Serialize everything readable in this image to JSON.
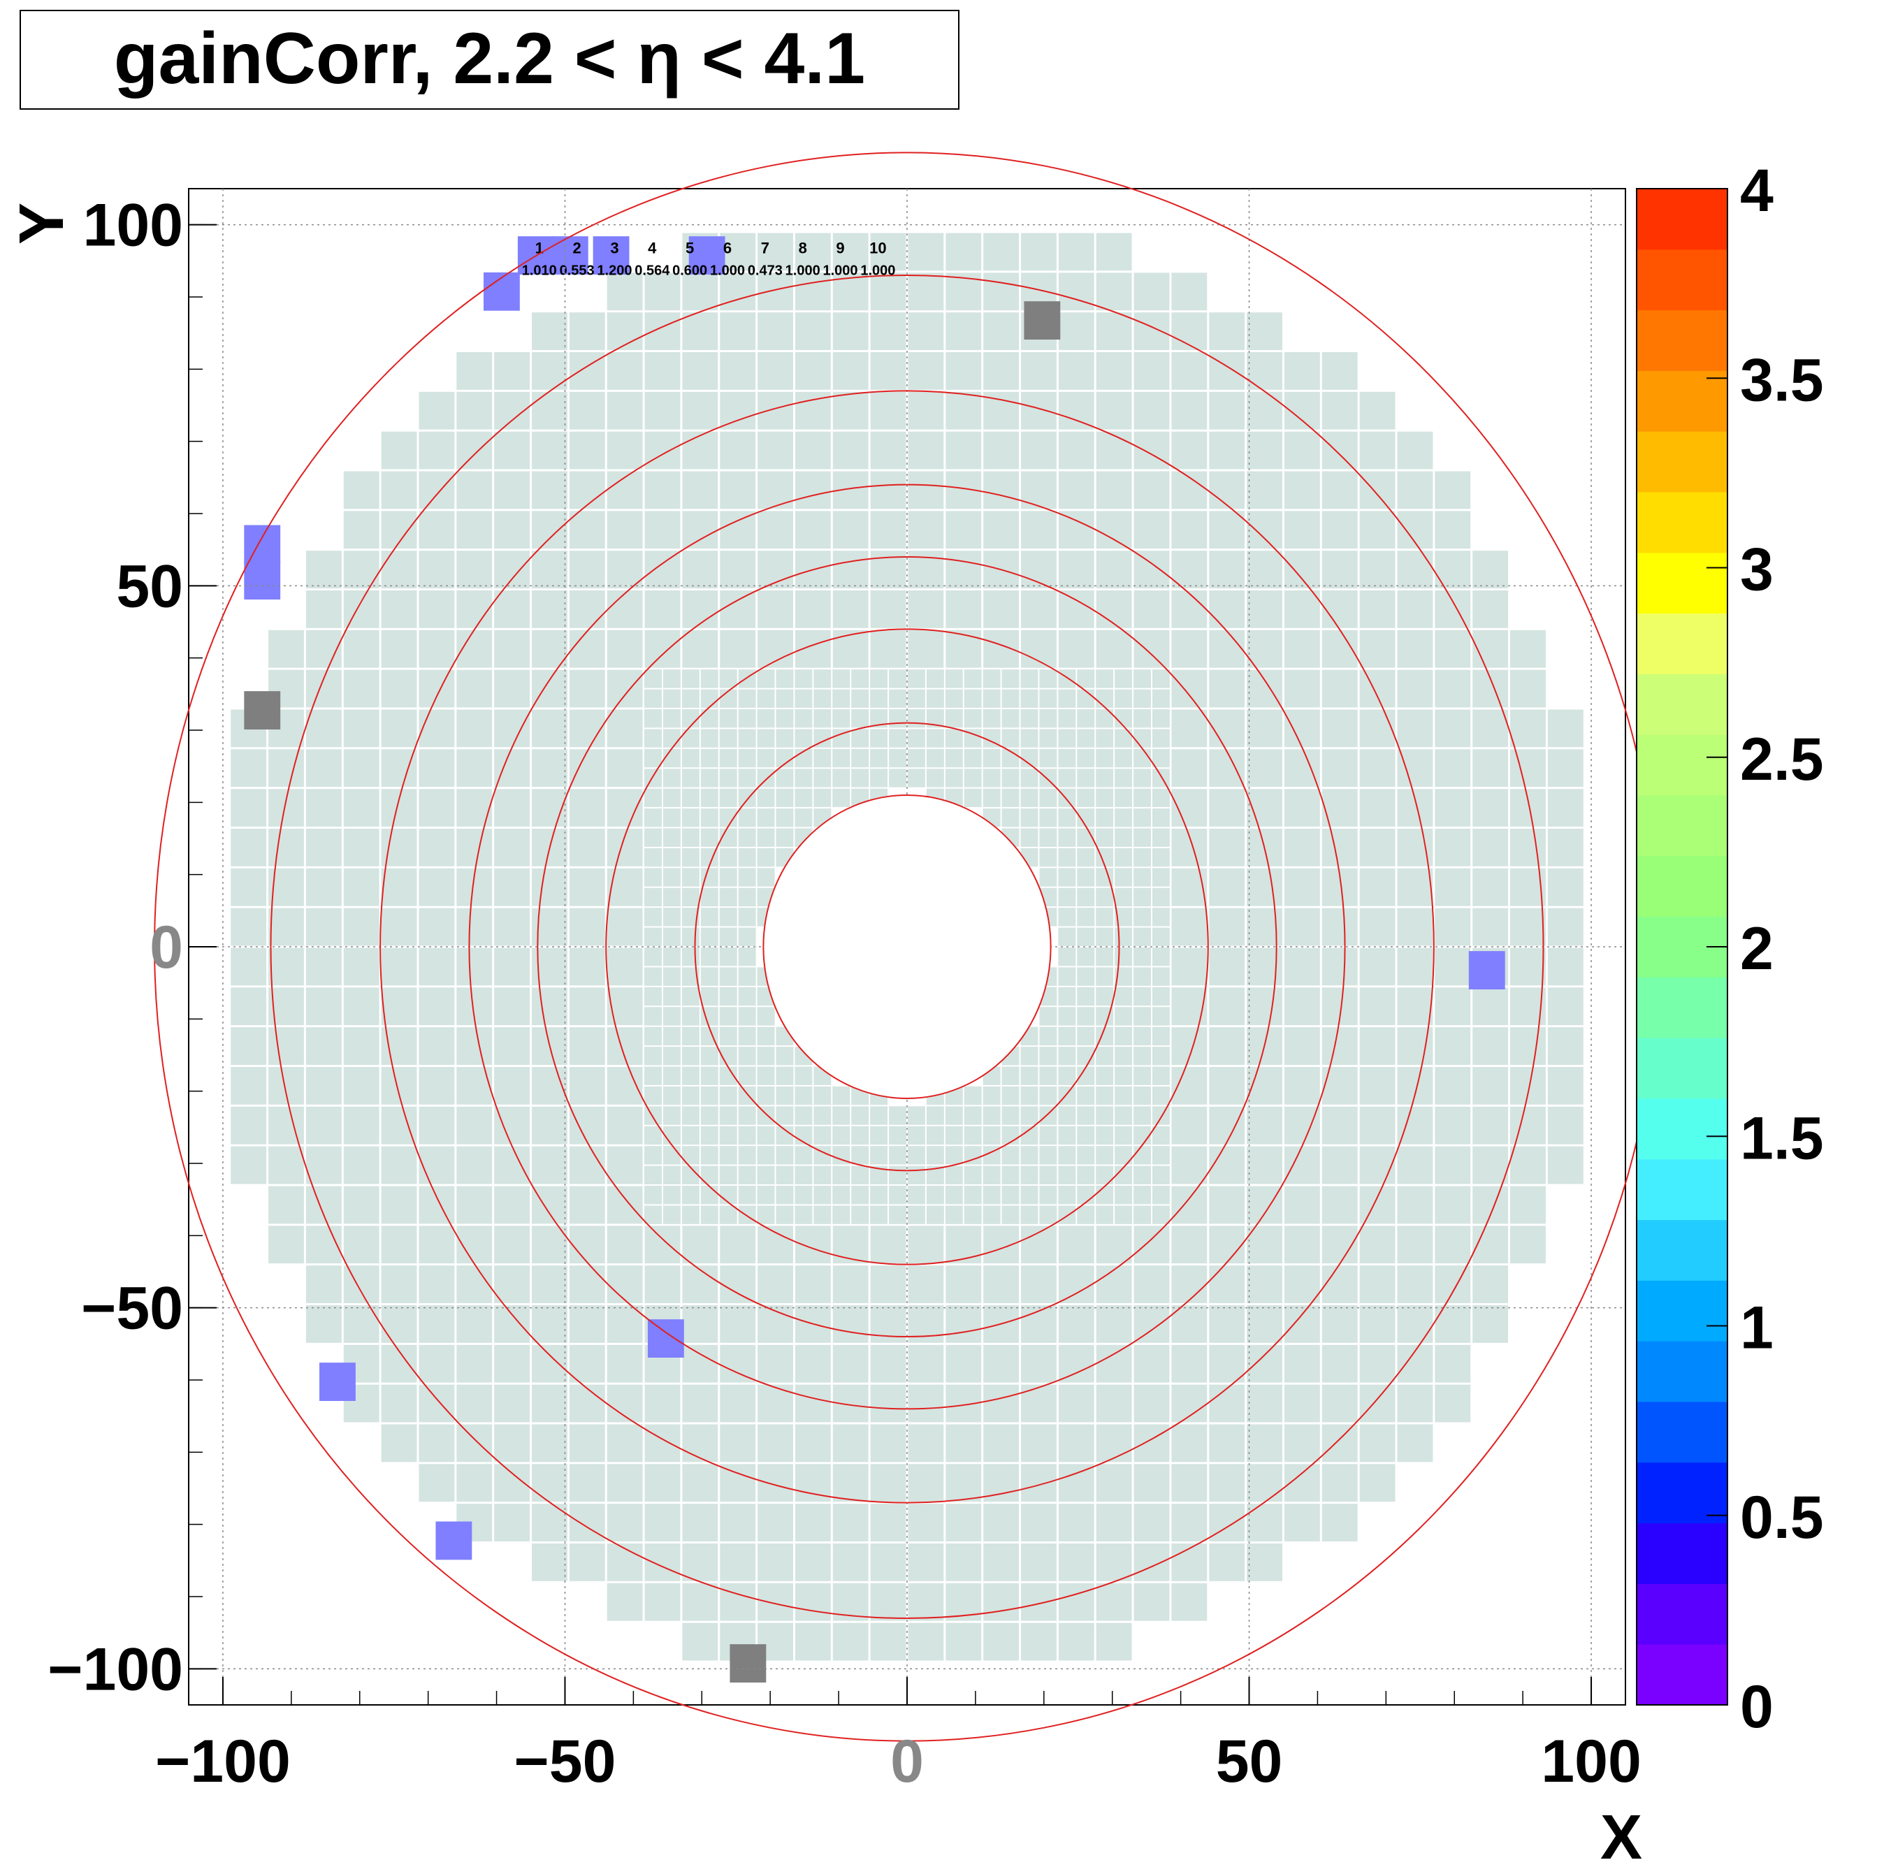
{
  "title": "gainCorr, 2.2 < η < 4.1",
  "chart_data": {
    "type": "heatmap",
    "title": "gainCorr, 2.2 < η < 4.1",
    "xlabel": "X",
    "ylabel": "Y",
    "xlim": [
      -105,
      105
    ],
    "ylim": [
      -105,
      105
    ],
    "x_ticks": [
      "−100",
      "−50",
      "0",
      "50",
      "100"
    ],
    "y_ticks": [
      "100",
      "50",
      "0",
      "−50",
      "−100"
    ],
    "grid": true,
    "colorbar": {
      "min": 0,
      "max": 4,
      "tick_labels": [
        "4",
        "3.5",
        "3",
        "2.5",
        "2",
        "1.5",
        "1",
        "0.5",
        "0"
      ],
      "colors": [
        "#7a00ff",
        "#5a00ff",
        "#2a00ff",
        "#0022ff",
        "#0055ff",
        "#0088ff",
        "#00aaff",
        "#22ccff",
        "#44eeff",
        "#55ffee",
        "#66ffcc",
        "#77ffaa",
        "#88ff88",
        "#99ff77",
        "#aaff77",
        "#bbff77",
        "#ccff77",
        "#eeff66",
        "#ffff00",
        "#ffdd00",
        "#ffbb00",
        "#ff9900",
        "#ff7700",
        "#ff5500",
        "#ff3300"
      ]
    },
    "cell_color": "#d4e4e0",
    "zero_cell_color": "#7f7f7f",
    "one_cell_color": "#7f7fff",
    "rings_radius": [
      31,
      44,
      54,
      64,
      77,
      93,
      110
    ],
    "sample_cells": [
      {
        "id": "10",
        "value": "1.000"
      },
      {
        "id": "9",
        "value": "1.000"
      },
      {
        "id": "8",
        "value": "1.000"
      },
      {
        "id": "7",
        "value": "0.473"
      },
      {
        "id": "6",
        "value": "1.000"
      },
      {
        "id": "5",
        "value": "0.600"
      },
      {
        "id": "4",
        "value": "0.564"
      },
      {
        "id": "3",
        "value": "1.200"
      },
      {
        "id": "2",
        "value": "0.553"
      },
      {
        "id": "1",
        "value": "1.010"
      }
    ]
  }
}
